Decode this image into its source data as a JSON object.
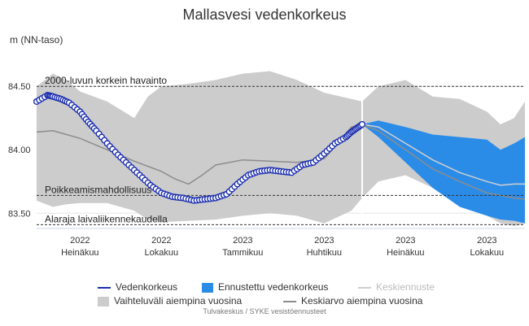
{
  "chart_data": {
    "type": "line",
    "title": "Mallasvesi vedenkorkeus",
    "ylabel": "m (NN-taso)",
    "xlabel": "",
    "ylim": [
      83.38,
      84.7
    ],
    "yticks": [
      "83.50",
      "84.00",
      "84.50"
    ],
    "xticks": [
      {
        "year": "2022",
        "month": "Heinäkuu"
      },
      {
        "year": "2022",
        "month": "Lokakuu"
      },
      {
        "year": "2023",
        "month": "Tammikuu"
      },
      {
        "year": "2023",
        "month": "Huhtikuu"
      },
      {
        "year": "2023",
        "month": "Heinäkuu"
      },
      {
        "year": "2023",
        "month": "Lokakuu"
      }
    ],
    "reference_lines": [
      {
        "label": "2000-luvun korkein havainto",
        "y": 84.5
      },
      {
        "label": "Poikkeamismahdollisuus",
        "y": 83.64
      },
      {
        "label": "Alaraja laivaliikennekaudella",
        "y": 83.41
      }
    ],
    "x_range_months": [
      -0.6,
      17.4
    ],
    "now_month": 11.4,
    "series": [
      {
        "name": "Vedenkorkeus",
        "x": [
          -0.6,
          -0.2,
          0,
          0.3,
          0.6,
          1,
          1.3,
          1.6,
          2,
          2.4,
          2.8,
          3.2,
          3.6,
          4,
          4.4,
          4.8,
          5.2,
          5.6,
          6,
          6.4,
          6.8,
          7.2,
          7.6,
          8,
          8.4,
          8.8,
          9.2,
          9.6,
          10,
          10.4,
          10.8,
          11,
          11.2,
          11.4
        ],
        "y": [
          84.38,
          84.43,
          84.42,
          84.4,
          84.37,
          84.3,
          84.22,
          84.15,
          84.05,
          83.96,
          83.88,
          83.8,
          83.72,
          83.66,
          83.63,
          83.62,
          83.6,
          83.61,
          83.62,
          83.65,
          83.73,
          83.8,
          83.83,
          83.84,
          83.83,
          83.82,
          83.88,
          83.9,
          83.97,
          84.05,
          84.1,
          84.14,
          84.17,
          84.2
        ]
      },
      {
        "name": "Keskiarvo aiempina vuosina",
        "x": [
          -0.6,
          0,
          1,
          2,
          3,
          4,
          4.5,
          5,
          5.5,
          6,
          7,
          8,
          9,
          10,
          10.5,
          11,
          11.4,
          12,
          13,
          14,
          15,
          16,
          17,
          17.4
        ],
        "y": [
          84.14,
          84.15,
          84.09,
          84.0,
          83.91,
          83.83,
          83.77,
          83.73,
          83.8,
          83.88,
          83.92,
          83.91,
          83.9,
          83.93,
          84.05,
          84.18,
          84.2,
          84.15,
          84.0,
          83.85,
          83.75,
          83.66,
          83.62,
          83.61
        ]
      }
    ],
    "range_band": {
      "name": "Vaihteluväli aiempina vuosina",
      "x": [
        -0.6,
        0,
        0.5,
        1,
        2,
        3,
        3.5,
        4,
        5,
        6,
        7,
        8,
        9,
        10,
        11,
        11.4,
        12,
        13,
        14,
        15,
        16,
        16.5,
        17,
        17.4
      ],
      "upper": [
        84.5,
        84.6,
        84.55,
        84.46,
        84.38,
        84.25,
        84.42,
        84.5,
        84.52,
        84.55,
        84.6,
        84.62,
        84.55,
        84.45,
        84.4,
        84.38,
        84.5,
        84.55,
        84.42,
        84.4,
        84.3,
        84.2,
        84.25,
        84.38
      ],
      "lower": [
        83.6,
        83.55,
        83.57,
        83.58,
        83.58,
        83.52,
        83.45,
        83.43,
        83.44,
        83.45,
        83.48,
        83.5,
        83.48,
        83.42,
        83.52,
        83.62,
        83.75,
        83.8,
        83.7,
        83.58,
        83.48,
        83.42,
        83.4,
        83.42
      ]
    },
    "forecast_band": {
      "name": "Ennustettu vedenkorkeus",
      "x": [
        11.4,
        12,
        13,
        14,
        15,
        16,
        16.5,
        17,
        17.4
      ],
      "upper": [
        84.2,
        84.23,
        84.18,
        84.12,
        84.1,
        84.08,
        84.0,
        84.05,
        84.1
      ],
      "lower": [
        84.2,
        84.1,
        83.9,
        83.7,
        83.55,
        83.48,
        83.45,
        83.44,
        83.42
      ]
    },
    "forecast_mean": {
      "name": "Keskiennuste",
      "x": [
        11.4,
        12,
        13,
        14,
        15,
        16,
        16.5,
        17,
        17.4
      ],
      "y": [
        84.2,
        84.18,
        84.05,
        83.92,
        83.82,
        83.75,
        83.72,
        83.73,
        83.73
      ]
    }
  },
  "legend": {
    "water_level": "Vedenkorkeus",
    "forecast": "Ennustettu vedenkorkeus",
    "forecast_mean": "Keskiennuste",
    "range": "Vaihteluväli aiempina vuosina",
    "mean_prev": "Keskiarvo aiempina vuosina"
  },
  "colors": {
    "water_level": "#1c2fb0",
    "forecast": "#2b8ce8",
    "forecast_mean": "#cfcfcf",
    "range": "#cccccc",
    "mean_prev": "#8c8c8c",
    "ref_line": "#333333",
    "grid": "#e6e6e6"
  },
  "credits": "Tulvakeskus / SYKE vesistöennusteet"
}
